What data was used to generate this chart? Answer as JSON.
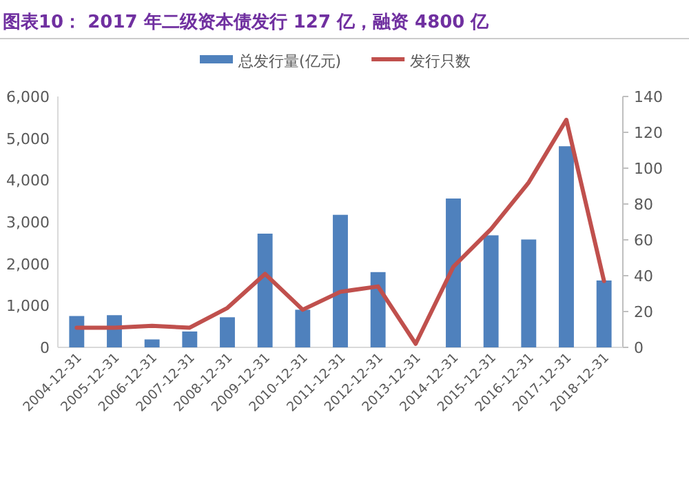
{
  "chart_data": {
    "type": "bar",
    "title": "图表10： 2017 年二级资本债发行 127 亿，融资 4800 亿",
    "categories": [
      "2004-12-31",
      "2005-12-31",
      "2006-12-31",
      "2007-12-31",
      "2008-12-31",
      "2009-12-31",
      "2010-12-31",
      "2011-12-31",
      "2012-12-31",
      "2013-12-31",
      "2014-12-31",
      "2015-12-31",
      "2016-12-31",
      "2017-12-31",
      "2018-12-31"
    ],
    "series": [
      {
        "name": "总发行量(亿元)",
        "color": "#4f81bd",
        "values": [
          750,
          770,
          190,
          380,
          720,
          2720,
          900,
          3170,
          1800,
          0,
          3560,
          2680,
          2580,
          4810,
          1600
        ]
      },
      {
        "name": "发行只数",
        "type": "line",
        "axis": "y2",
        "color": "#c0504d",
        "values": [
          11,
          11,
          12,
          11,
          22,
          41,
          21,
          31,
          34,
          2,
          45,
          66,
          92,
          127,
          37
        ]
      }
    ],
    "ylim": [
      0,
      6000
    ],
    "yticks": [
      {
        "value": 0,
        "label": "0"
      },
      {
        "value": 1000,
        "label": "1,000"
      },
      {
        "value": 2000,
        "label": "2,000"
      },
      {
        "value": 3000,
        "label": "3,000"
      },
      {
        "value": 4000,
        "label": "4,000"
      },
      {
        "value": 5000,
        "label": "5,000"
      },
      {
        "value": 6000,
        "label": "6,000"
      }
    ],
    "y2lim": [
      0,
      140
    ],
    "y2ticks": [
      0,
      20,
      40,
      60,
      80,
      100,
      120,
      140
    ],
    "legend": "top",
    "grid": false
  }
}
